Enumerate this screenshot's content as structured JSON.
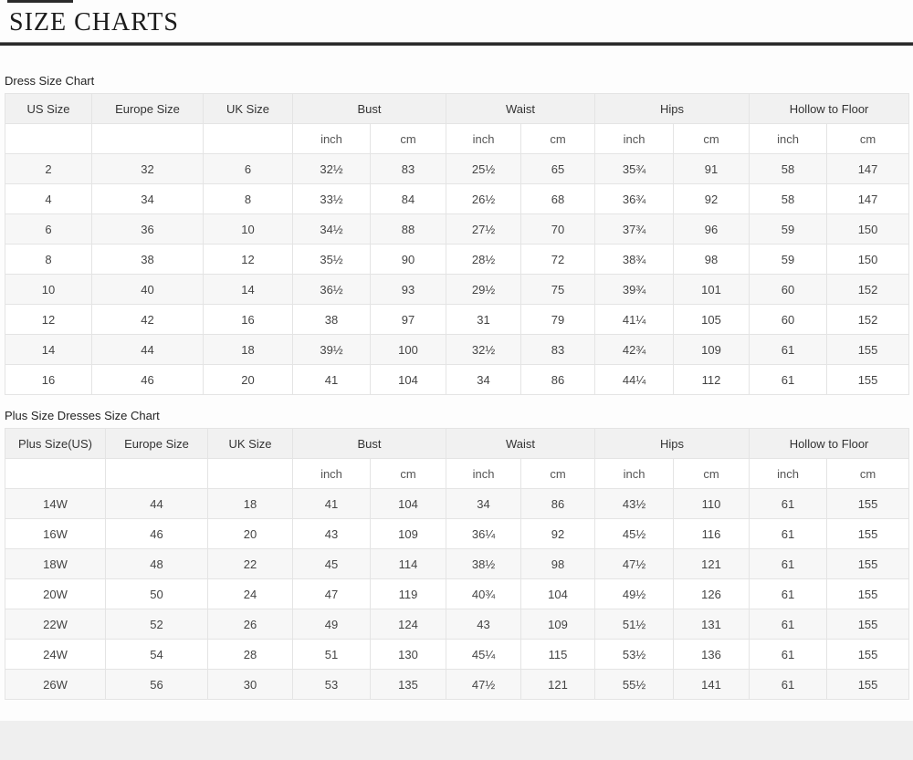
{
  "page": {
    "title": "SIZE CHARTS"
  },
  "colors": {
    "title_rule": "#2b2b2b",
    "header_bg": "#f1f1f1",
    "row_stripe": "#f7f7f7",
    "table_border": "#e4e4e4",
    "footer_strip": "#efefef",
    "text": "#444444"
  },
  "tables": [
    {
      "caption": "Dress Size Chart",
      "group_headers": [
        {
          "label": "US Size",
          "span": 1
        },
        {
          "label": "Europe Size",
          "span": 1
        },
        {
          "label": "UK Size",
          "span": 1
        },
        {
          "label": "Bust",
          "span": 2
        },
        {
          "label": "Waist",
          "span": 2
        },
        {
          "label": "Hips",
          "span": 2
        },
        {
          "label": "Hollow to Floor",
          "span": 2
        }
      ],
      "unit_row": [
        "",
        "",
        "",
        "inch",
        "cm",
        "inch",
        "cm",
        "inch",
        "cm",
        "inch",
        "cm"
      ],
      "rows": [
        [
          "2",
          "32",
          "6",
          "32½",
          "83",
          "25½",
          "65",
          "35¾",
          "91",
          "58",
          "147"
        ],
        [
          "4",
          "34",
          "8",
          "33½",
          "84",
          "26½",
          "68",
          "36¾",
          "92",
          "58",
          "147"
        ],
        [
          "6",
          "36",
          "10",
          "34½",
          "88",
          "27½",
          "70",
          "37¾",
          "96",
          "59",
          "150"
        ],
        [
          "8",
          "38",
          "12",
          "35½",
          "90",
          "28½",
          "72",
          "38¾",
          "98",
          "59",
          "150"
        ],
        [
          "10",
          "40",
          "14",
          "36½",
          "93",
          "29½",
          "75",
          "39¾",
          "101",
          "60",
          "152"
        ],
        [
          "12",
          "42",
          "16",
          "38",
          "97",
          "31",
          "79",
          "41¼",
          "105",
          "60",
          "152"
        ],
        [
          "14",
          "44",
          "18",
          "39½",
          "100",
          "32½",
          "83",
          "42¾",
          "109",
          "61",
          "155"
        ],
        [
          "16",
          "46",
          "20",
          "41",
          "104",
          "34",
          "86",
          "44¼",
          "112",
          "61",
          "155"
        ]
      ]
    },
    {
      "caption": "Plus Size Dresses Size Chart",
      "group_headers": [
        {
          "label": "Plus Size(US)",
          "span": 1
        },
        {
          "label": "Europe Size",
          "span": 1
        },
        {
          "label": "UK Size",
          "span": 1
        },
        {
          "label": "Bust",
          "span": 2
        },
        {
          "label": "Waist",
          "span": 2
        },
        {
          "label": "Hips",
          "span": 2
        },
        {
          "label": "Hollow to Floor",
          "span": 2
        }
      ],
      "unit_row": [
        "",
        "",
        "",
        "inch",
        "cm",
        "inch",
        "cm",
        "inch",
        "cm",
        "inch",
        "cm"
      ],
      "rows": [
        [
          "14W",
          "44",
          "18",
          "41",
          "104",
          "34",
          "86",
          "43½",
          "110",
          "61",
          "155"
        ],
        [
          "16W",
          "46",
          "20",
          "43",
          "109",
          "36¼",
          "92",
          "45½",
          "116",
          "61",
          "155"
        ],
        [
          "18W",
          "48",
          "22",
          "45",
          "114",
          "38½",
          "98",
          "47½",
          "121",
          "61",
          "155"
        ],
        [
          "20W",
          "50",
          "24",
          "47",
          "119",
          "40¾",
          "104",
          "49½",
          "126",
          "61",
          "155"
        ],
        [
          "22W",
          "52",
          "26",
          "49",
          "124",
          "43",
          "109",
          "51½",
          "131",
          "61",
          "155"
        ],
        [
          "24W",
          "54",
          "28",
          "51",
          "130",
          "45¼",
          "115",
          "53½",
          "136",
          "61",
          "155"
        ],
        [
          "26W",
          "56",
          "30",
          "53",
          "135",
          "47½",
          "121",
          "55½",
          "141",
          "61",
          "155"
        ]
      ]
    }
  ]
}
